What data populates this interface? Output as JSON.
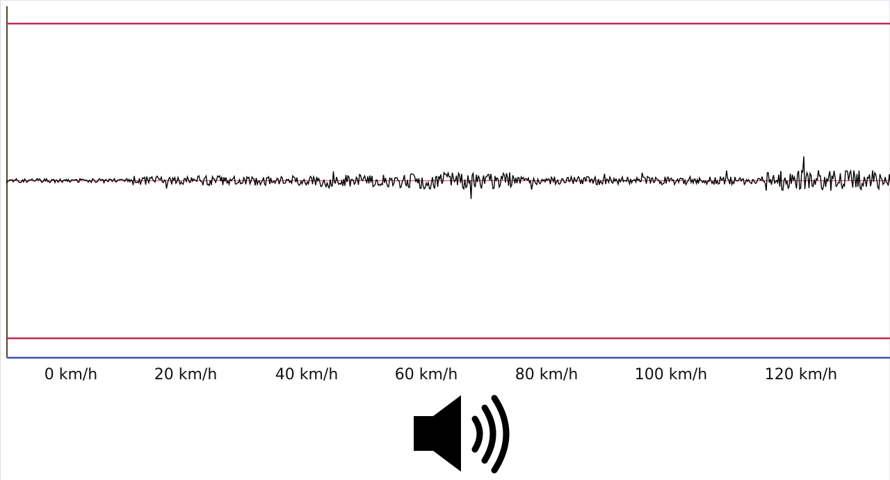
{
  "waveform": {
    "colors": {
      "clip_line": "#c0264f",
      "baseline": "#3a4fa8",
      "center_line": "#c0264f",
      "signal": "#000000",
      "left_axis": "#4a4a2a"
    }
  },
  "speed_axis": {
    "labels": [
      "0 km/h",
      "20 km/h",
      "40 km/h",
      "60 km/h",
      "80 km/h",
      "100 km/h",
      "120 km/h"
    ]
  },
  "audio": {
    "icon": "speaker-volume-icon"
  }
}
